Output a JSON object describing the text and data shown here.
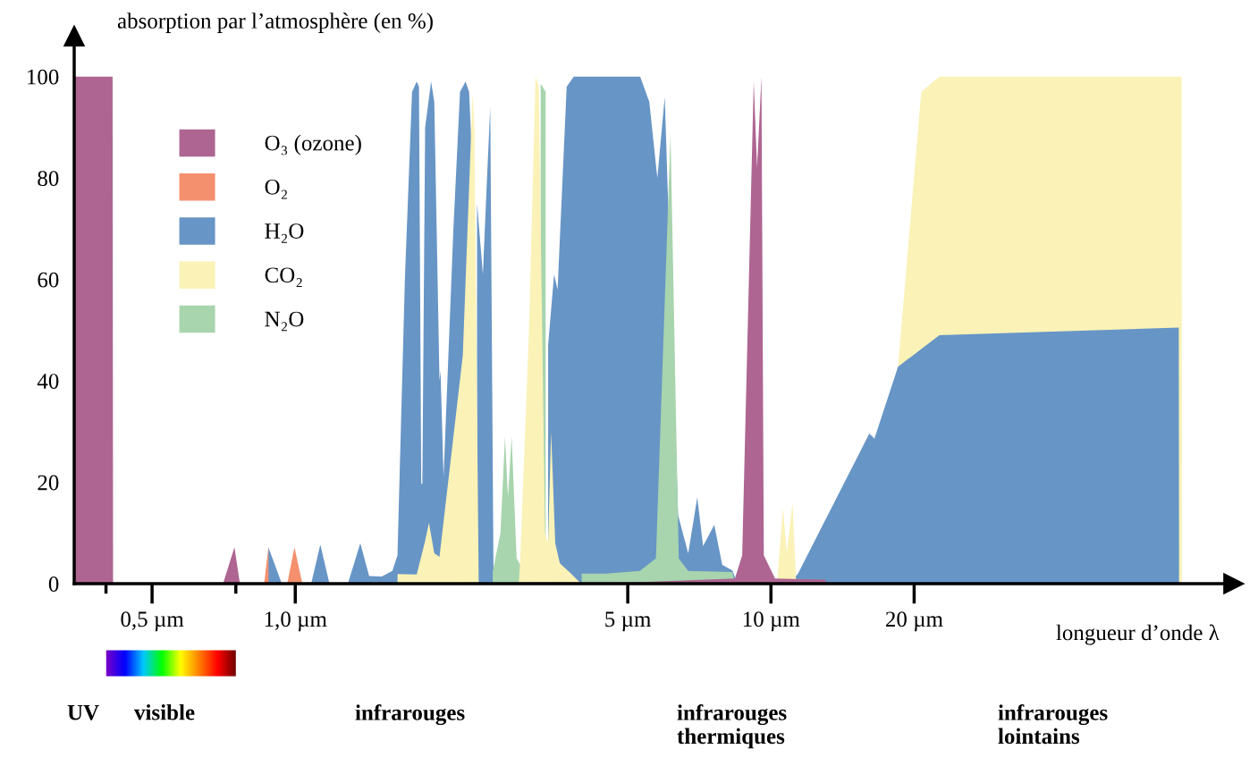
{
  "chart_data": {
    "type": "area",
    "ylabel": "absorption par l’atmosphère (en %)",
    "xlabel": "longueur d’onde λ",
    "log": "x",
    "grid": false,
    "legend": "top left",
    "xlim": [
      0.343,
      94
    ],
    "ylim": [
      0,
      108
    ],
    "xticks": [
      {
        "value": 0.4,
        "label": null
      },
      {
        "value": 0.5,
        "label": "0,5 µm"
      },
      {
        "value": 0.75,
        "label": null
      },
      {
        "value": 1,
        "label": "1,0 µm"
      },
      {
        "value": 5,
        "label": "5 µm"
      },
      {
        "value": 10,
        "label": "10 µm"
      },
      {
        "value": 20,
        "label": "20 µm"
      }
    ],
    "yticks": [
      0,
      20,
      40,
      60,
      80,
      100
    ],
    "annotations": [
      "UV",
      "visible",
      "infrarouges",
      "infrarouges\nthermiques",
      "infrarouges\nlointains"
    ],
    "series": [
      {
        "name": "O₃ (ozone)",
        "color": "#ae6592",
        "x": [
          0.343,
          0.413,
          0.414,
          0.705,
          0.745,
          0.765,
          5.3,
          8.4,
          8.7,
          9.2,
          9.35,
          9.55,
          9.66,
          10.2,
          13.0,
          13.1
        ],
        "values": [
          100,
          100,
          0,
          0,
          7.2,
          0,
          0.3,
          1,
          5.6,
          99,
          82,
          100,
          5.6,
          1,
          0.8,
          0
        ]
      },
      {
        "name": "O₂",
        "color": "#f4906d",
        "x": [
          0.86,
          0.878,
          0.879,
          0.962,
          0.996,
          1.035
        ],
        "values": [
          0,
          7.2,
          0,
          0,
          7.2,
          0
        ]
      },
      {
        "name": "H₂O",
        "color": "#6795c6",
        "x": [
          0.877,
          0.878,
          0.937,
          1.08,
          1.129,
          1.18,
          1.29,
          1.37,
          1.43,
          1.52,
          1.6,
          1.64,
          1.7,
          1.76,
          1.8,
          1.82,
          1.84,
          1.85,
          1.875,
          1.93,
          1.96,
          2.01,
          2.02,
          2.05,
          2.15,
          2.22,
          2.28,
          2.32,
          2.35,
          2.351,
          2.41,
          2.411,
          2.48,
          2.53,
          2.57,
          2.61,
          2.661,
          3.4,
          3.401,
          3.5,
          3.56,
          3.72,
          3.85,
          5.31,
          5.55,
          5.77,
          5.98,
          6.38,
          6.7,
          7.0,
          7.2,
          7.6,
          7.9,
          8.3,
          8.5,
          10.9,
          11.4,
          16.1,
          16.5,
          18.5,
          22.6,
          72,
          72.1
        ],
        "values": [
          0,
          7.2,
          0,
          0,
          7.7,
          0,
          0,
          8,
          1.5,
          1.4,
          2.5,
          5.6,
          60,
          97,
          99,
          98,
          19.7,
          19.7,
          90,
          99,
          95,
          40,
          42,
          21,
          70,
          97,
          99,
          97,
          85,
          0,
          0,
          75,
          61,
          80,
          94,
          3,
          0,
          0,
          47,
          61,
          58,
          98,
          100,
          100,
          95,
          80,
          96,
          13.5,
          6,
          17,
          7.4,
          11.6,
          3.7,
          2.6,
          0,
          0,
          2,
          29.6,
          28.6,
          42.8,
          49,
          50.5,
          0
        ]
      },
      {
        "name": "CO₂",
        "color": "#faf2b7",
        "x": [
          1.64,
          1.641,
          1.8,
          1.87,
          1.91,
          1.96,
          2.01,
          2.25,
          2.36,
          2.38,
          2.43,
          2.95,
          2.97,
          3.1,
          3.2,
          3.25,
          3.35,
          3.4,
          3.45,
          3.52,
          3.6,
          3.8,
          3.99,
          10.3,
          10.6,
          10.8,
          11.1,
          11.3
        ],
        "values": [
          0,
          1.9,
          1.8,
          8,
          12,
          6,
          5.3,
          45,
          97,
          90,
          0,
          0,
          4.4,
          50,
          100,
          98,
          10,
          8,
          30,
          8,
          4,
          2,
          0,
          0,
          15,
          6,
          16,
          0
        ]
      },
      {
        "name": "N₂O",
        "color": "#a8d4ae",
        "x": [
          2.6,
          2.7,
          2.76,
          2.8,
          2.85,
          2.92,
          3.0,
          3.2,
          3.28,
          3.36,
          3.4,
          4.0,
          4.5,
          5.3,
          5.73,
          6.15,
          6.4,
          6.7,
          8.3,
          8.4
        ],
        "values": [
          2.3,
          10,
          29,
          17,
          29,
          5,
          3,
          null,
          98.6,
          97,
          null,
          2,
          2,
          2.5,
          5,
          88.7,
          5,
          2.5,
          2.3,
          0
        ]
      },
      {
        "color": "#faf2b7",
        "x": [
          18.3,
          18.5,
          20.7,
          22.6,
          73,
          73.1
        ],
        "values": [
          0,
          42.8,
          97,
          100,
          100,
          0
        ]
      }
    ]
  }
}
